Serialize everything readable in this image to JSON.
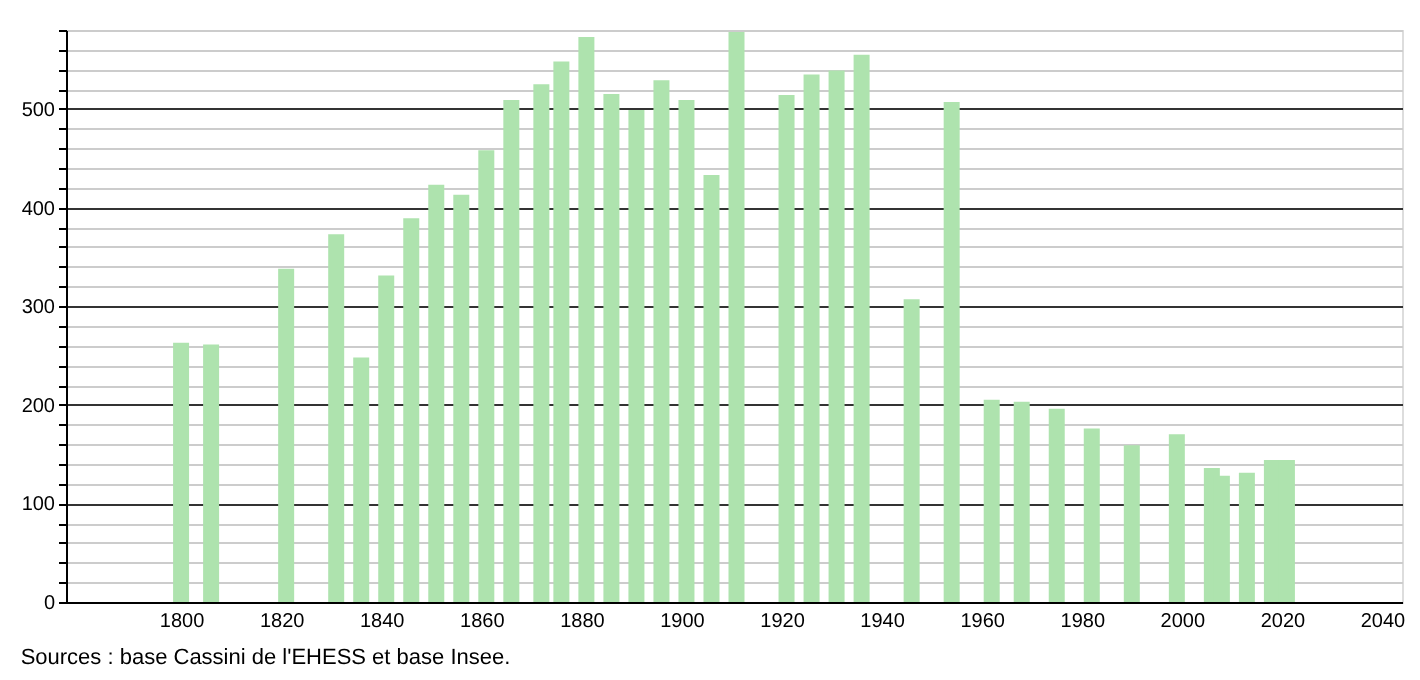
{
  "chart_data": {
    "type": "bar",
    "color": "#aee3ae",
    "x": [
      1800,
      1806,
      1821,
      1831,
      1836,
      1841,
      1846,
      1851,
      1856,
      1861,
      1866,
      1872,
      1876,
      1881,
      1886,
      1891,
      1896,
      1901,
      1906,
      1911,
      1921,
      1926,
      1931,
      1936,
      1946,
      1954,
      1962,
      1968,
      1975,
      1982,
      1990,
      1999,
      2006,
      2008,
      2013,
      2018,
      2021
    ],
    "values": [
      263,
      261,
      338,
      373,
      248,
      331,
      389,
      423,
      413,
      458,
      509,
      525,
      548,
      573,
      515,
      499,
      529,
      509,
      433,
      578,
      514,
      535,
      539,
      555,
      307,
      507,
      205,
      203,
      196,
      176,
      159,
      170,
      136,
      128,
      131,
      144,
      144
    ],
    "xlim": [
      1779,
      2042
    ],
    "xticks": [
      1800,
      1820,
      1840,
      1860,
      1880,
      1900,
      1920,
      1940,
      1960,
      1980,
      2000,
      2020,
      2040
    ],
    "ylim": [
      0,
      580
    ],
    "yticks": [
      0,
      {
        "value": 20,
        "label": null
      },
      {
        "value": 40,
        "label": null
      },
      {
        "value": 60,
        "label": null
      },
      {
        "value": 80,
        "label": null
      },
      100,
      {
        "value": 120,
        "label": null
      },
      {
        "value": 140,
        "label": null
      },
      {
        "value": 160,
        "label": null
      },
      {
        "value": 180,
        "label": null
      },
      200,
      {
        "value": 220,
        "label": null
      },
      {
        "value": 240,
        "label": null
      },
      {
        "value": 260,
        "label": null
      },
      {
        "value": 280,
        "label": null
      },
      300,
      {
        "value": 320,
        "label": null
      },
      {
        "value": 340,
        "label": null
      },
      {
        "value": 360,
        "label": null
      },
      {
        "value": 380,
        "label": null
      },
      400,
      {
        "value": 420,
        "label": null
      },
      {
        "value": 440,
        "label": null
      },
      {
        "value": 460,
        "label": null
      },
      {
        "value": 480,
        "label": null
      },
      500,
      {
        "value": 520,
        "label": null
      },
      {
        "value": 540,
        "label": null
      },
      {
        "value": 560,
        "label": null
      },
      {
        "value": 580,
        "label": null
      }
    ],
    "grid": "y",
    "annotations": [
      "Sources : base Cassini de l'EHESS et base Insee."
    ]
  }
}
